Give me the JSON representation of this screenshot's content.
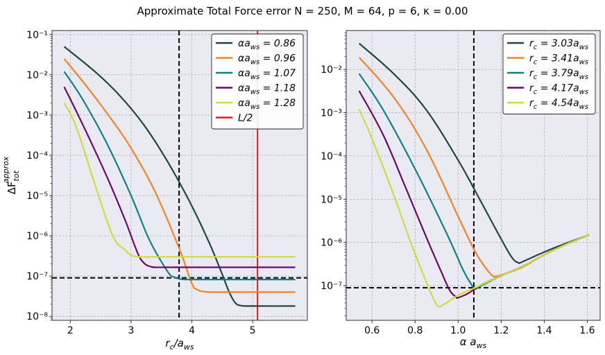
{
  "figure": {
    "title": "Approximate Total Force error  N = 250,    M = 64,    p = 6,    κ = 0.00"
  },
  "colors": {
    "plot_bg": "#EAEAF2",
    "grid": "#a0a0a0",
    "dark_green": "#1D4640",
    "orange": "#F5831F",
    "teal": "#0E8080",
    "purple": "#6C0864",
    "yellow_green": "#CDDC3A",
    "red": "#E31A1C"
  },
  "chart_data": [
    {
      "type": "line",
      "id": "left",
      "xlabel": "r_c/a_ws",
      "ylabel": "ΔF_tot^approx",
      "xlim": [
        1.7,
        5.9
      ],
      "ylim_log10": [
        -8.1,
        -0.9
      ],
      "log_y": true,
      "grid": true,
      "legend_placement": "top-right",
      "xticks": [
        2,
        3,
        4,
        5
      ],
      "xtick_labels": [
        "2",
        "3",
        "4",
        "5"
      ],
      "yticks_exp": [
        -8,
        -7,
        -6,
        -5,
        -4,
        -3,
        -2,
        -1
      ],
      "hlines": [
        {
          "y": 9e-08,
          "style": "dashed",
          "color": "#000000"
        }
      ],
      "vlines": [
        {
          "x": 3.79,
          "style": "dashed",
          "color": "#000000"
        },
        {
          "x": 5.08,
          "style": "solid",
          "color": "#E31A1C",
          "name": "L/2"
        }
      ],
      "series": [
        {
          "name": "αa_ws = 0.86",
          "color": "#1D4640",
          "x": [
            1.9,
            2.4,
            2.8,
            3.2,
            3.6,
            4.0,
            4.3,
            4.5,
            4.6,
            4.7,
            4.8,
            5.0,
            5.7
          ],
          "y": [
            0.05,
            0.0122,
            0.0032,
            0.0006,
            7e-05,
            5.5e-06,
            6e-07,
            1.1e-07,
            4.5e-08,
            2.3e-08,
            1.85e-08,
            1.8e-08,
            1.8e-08
          ]
        },
        {
          "name": "αa_ws = 0.96",
          "color": "#F5831F",
          "x": [
            1.9,
            2.3,
            2.7,
            3.0,
            3.4,
            3.8,
            4.0,
            4.1,
            4.2,
            4.3,
            4.4,
            4.6,
            5.7
          ],
          "y": [
            0.025,
            0.0045,
            0.0007,
            0.00015,
            1.2e-05,
            4.5e-07,
            6.5e-08,
            4.5e-08,
            4.1e-08,
            4e-08,
            4e-08,
            4e-08,
            4e-08
          ]
        },
        {
          "name": "αa_ws = 1.07",
          "color": "#0E8080",
          "x": [
            1.9,
            2.2,
            2.6,
            3.0,
            3.3,
            3.6,
            3.7,
            3.8,
            3.9,
            4.1,
            5.7
          ],
          "y": [
            0.012,
            0.0025,
            0.0002,
            1e-05,
            8e-07,
            1.3e-07,
            9.5e-08,
            8.5e-08,
            8.2e-08,
            8.2e-08,
            8.2e-08
          ]
        },
        {
          "name": "αa_ws = 1.18",
          "color": "#6C0864",
          "x": [
            1.9,
            2.2,
            2.6,
            2.9,
            3.1,
            3.2,
            3.3,
            3.4,
            3.6,
            5.7
          ],
          "y": [
            0.005,
            0.0006,
            3e-05,
            2.5e-06,
            4e-07,
            2.2e-07,
            1.75e-07,
            1.65e-07,
            1.65e-07,
            1.65e-07
          ]
        },
        {
          "name": "αa_ws = 1.28",
          "color": "#CDDC3A",
          "x": [
            1.9,
            2.1,
            2.4,
            2.7,
            2.9,
            3.0,
            3.1,
            3.2,
            3.4,
            5.7
          ],
          "y": [
            0.002,
            0.0005,
            2e-05,
            1e-06,
            4.5e-07,
            3.3e-07,
            3.05e-07,
            3e-07,
            3e-07,
            3e-07
          ]
        }
      ],
      "legend_entries": [
        {
          "label": "αa_ws = 0.86",
          "color": "#1D4640"
        },
        {
          "label": "αa_ws = 0.96",
          "color": "#F5831F"
        },
        {
          "label": "αa_ws = 1.07",
          "color": "#0E8080"
        },
        {
          "label": "αa_ws = 1.18",
          "color": "#6C0864"
        },
        {
          "label": "αa_ws = 1.28",
          "color": "#CDDC3A"
        },
        {
          "label": "L/2",
          "color": "#E31A1C"
        }
      ]
    },
    {
      "type": "line",
      "id": "right",
      "xlabel": "α a_ws",
      "ylabel": "",
      "xlim": [
        0.48,
        1.66
      ],
      "ylim_log10": [
        -7.8,
        -1.1
      ],
      "log_y": true,
      "grid": true,
      "legend_placement": "top-right",
      "xticks": [
        0.6,
        0.8,
        1.0,
        1.2,
        1.4,
        1.6
      ],
      "xtick_labels": [
        "0.6",
        "0.8",
        "1.0",
        "1.2",
        "1.4",
        "1.6"
      ],
      "yticks_exp": [
        -7,
        -6,
        -5,
        -4,
        -3,
        -2
      ],
      "hlines": [
        {
          "y": 9e-08,
          "style": "dashed",
          "color": "#000000"
        }
      ],
      "vlines": [
        {
          "x": 1.073,
          "style": "dashed",
          "color": "#000000"
        }
      ],
      "series": [
        {
          "name": "r_c = 3.03a_ws",
          "color": "#1D4640",
          "x": [
            0.54,
            0.7,
            0.85,
            1.0,
            1.1,
            1.2,
            1.25,
            1.28,
            1.3,
            1.4,
            1.5,
            1.61
          ],
          "y": [
            0.04,
            0.008,
            0.0012,
            8e-05,
            1e-05,
            1.2e-06,
            4.5e-07,
            3.4e-07,
            3.6e-07,
            6e-07,
            9.5e-07,
            1.5e-06
          ]
        },
        {
          "name": "r_c = 3.41a_ws",
          "color": "#F5831F",
          "x": [
            0.54,
            0.7,
            0.85,
            1.0,
            1.08,
            1.13,
            1.16,
            1.18,
            1.22,
            1.3,
            1.4,
            1.5,
            1.61
          ],
          "y": [
            0.019,
            0.0023,
            0.00015,
            4e-06,
            6e-07,
            2.5e-07,
            1.7e-07,
            1.65e-07,
            1.9e-07,
            2.7e-07,
            5.2e-07,
            9e-07,
            1.5e-06
          ]
        },
        {
          "name": "r_c = 3.79a_ws",
          "color": "#0E8080",
          "x": [
            0.54,
            0.65,
            0.8,
            0.95,
            1.02,
            1.06,
            1.08,
            1.1,
            1.2,
            1.3,
            1.4,
            1.5,
            1.61
          ],
          "y": [
            0.008,
            0.0012,
            5e-05,
            1.5e-06,
            2.5e-07,
            1.1e-07,
            8.5e-08,
            9.5e-08,
            1.7e-07,
            2.8e-07,
            5.2e-07,
            9e-07,
            1.5e-06
          ]
        },
        {
          "name": "r_c = 4.17a_ws",
          "color": "#6C0864",
          "x": [
            0.54,
            0.65,
            0.75,
            0.85,
            0.92,
            0.96,
            0.99,
            1.0,
            1.05,
            1.1,
            1.2,
            1.3,
            1.4,
            1.5,
            1.61
          ],
          "y": [
            0.0032,
            0.00032,
            2.2e-05,
            1.4e-06,
            2.2e-07,
            8e-08,
            5.5e-08,
            5.3e-08,
            6.8e-08,
            1e-07,
            1.7e-07,
            2.8e-07,
            5.2e-07,
            9e-07,
            1.5e-06
          ]
        },
        {
          "name": "r_c = 4.54a_ws",
          "color": "#CDDC3A",
          "x": [
            0.54,
            0.6,
            0.7,
            0.78,
            0.85,
            0.89,
            0.91,
            0.93,
            0.97,
            1.0,
            1.1,
            1.2,
            1.3,
            1.4,
            1.5,
            1.61
          ],
          "y": [
            0.0012,
            0.00025,
            1.3e-05,
            1e-06,
            1.3e-07,
            4.5e-08,
            3.3e-08,
            3.6e-08,
            4.8e-08,
            6e-08,
            1e-07,
            1.7e-07,
            2.8e-07,
            5.2e-07,
            9e-07,
            1.5e-06
          ]
        }
      ],
      "legend_entries": [
        {
          "label": "r_c = 3.03a_ws",
          "color": "#1D4640"
        },
        {
          "label": "r_c = 3.41a_ws",
          "color": "#F5831F"
        },
        {
          "label": "r_c = 3.79a_ws",
          "color": "#0E8080"
        },
        {
          "label": "r_c = 4.17a_ws",
          "color": "#6C0864"
        },
        {
          "label": "r_c = 4.54a_ws",
          "color": "#CDDC3A"
        }
      ]
    }
  ]
}
